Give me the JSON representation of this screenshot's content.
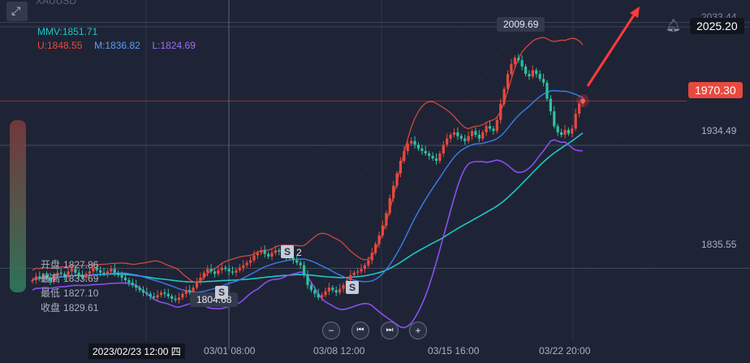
{
  "symbol": "XAUUSD",
  "indicators": {
    "mmv": "MMV:1851.71",
    "upper": "U:1848.55",
    "middle": "M:1836.82",
    "lower": "L:1824.69"
  },
  "ohlc": {
    "open_label": "开盘",
    "open_value": "1827.86",
    "high_label": "最高",
    "high_value": "1833.69",
    "low_label": "最低",
    "low_value": "1827.10",
    "close_label": "收盘",
    "close_value": "1829.61"
  },
  "price_axis": {
    "top_label": "2033.44",
    "crosshair_price": "2025.20",
    "current_price": "1970.30",
    "level_1": "1934.49",
    "level_2": "1835.55"
  },
  "annotations": {
    "high_marker": "2009.69",
    "low_marker": "1804.68",
    "s_marker": "S",
    "s_marker_count": "2"
  },
  "x_axis": {
    "crosshair_date": "2023/02/23 12:00 四",
    "ticks": [
      "03/01 08:00",
      "03/08 12:00",
      "03/15 16:00",
      "03/22 20:00"
    ]
  },
  "controls": {
    "zoom_out": "−",
    "prev": "⏮",
    "next": "⏭",
    "zoom_in": "+"
  },
  "colors": {
    "background": "#1e2435",
    "up_candle": "#e8493f",
    "down_candle": "#2fc0a0",
    "upper_band": "#d2473d",
    "middle_band": "#3a7cf0",
    "lower_band": "#8a4ff0",
    "mmv_line": "#20c6c6",
    "arrow": "#ff3b3b",
    "current_price_tag": "#e8493f"
  },
  "chart_data": {
    "type": "candlestick",
    "y_axis": {
      "ylim": [
        1790,
        2045
      ],
      "visible_labels": [
        2033.44,
        1934.49,
        1835.55
      ]
    },
    "x_axis": {
      "tick_labels": [
        "03/01 08:00",
        "03/08 12:00",
        "03/15 16:00",
        "03/22 20:00"
      ]
    },
    "close_series": [
      1826,
      1829,
      1827,
      1830,
      1828,
      1825,
      1830,
      1832,
      1831,
      1829,
      1833,
      1835,
      1832,
      1830,
      1828,
      1831,
      1833,
      1836,
      1834,
      1832,
      1831,
      1833,
      1835,
      1832,
      1830,
      1828,
      1826,
      1824,
      1822,
      1820,
      1818,
      1816,
      1815,
      1813,
      1812,
      1814,
      1816,
      1815,
      1813,
      1811,
      1810,
      1812,
      1815,
      1818,
      1816,
      1820,
      1825,
      1828,
      1832,
      1835,
      1833,
      1831,
      1834,
      1836,
      1835,
      1833,
      1832,
      1834,
      1836,
      1838,
      1840,
      1842,
      1846,
      1848,
      1850,
      1847,
      1845,
      1848,
      1850,
      1849,
      1846,
      1845,
      1844,
      1842,
      1840,
      1838,
      1830,
      1822,
      1818,
      1815,
      1812,
      1814,
      1817,
      1820,
      1818,
      1816,
      1819,
      1822,
      1826,
      1830,
      1832,
      1833,
      1835,
      1838,
      1842,
      1848,
      1855,
      1862,
      1870,
      1880,
      1892,
      1902,
      1912,
      1922,
      1930,
      1936,
      1938,
      1935,
      1932,
      1930,
      1928,
      1926,
      1924,
      1922,
      1928,
      1935,
      1940,
      1943,
      1945,
      1942,
      1940,
      1938,
      1942,
      1946,
      1943,
      1940,
      1945,
      1950,
      1948,
      1946,
      1955,
      1968,
      1980,
      1992,
      2000,
      2005,
      2003,
      1998,
      1992,
      1990,
      1995,
      1992,
      1988,
      1985,
      1972,
      1962,
      1950,
      1945,
      1943,
      1947,
      1944,
      1948,
      1960,
      1968,
      1970.3
    ],
    "bands": {
      "upper": {
        "name": "U",
        "last": 1848.55
      },
      "middle": {
        "name": "M",
        "last": 1836.82
      },
      "lower": {
        "name": "L",
        "last": 1824.69
      },
      "mmv": {
        "name": "MMV",
        "last": 1851.71
      }
    },
    "marked_high": 2009.69,
    "marked_low": 1804.68,
    "current": 1970.3,
    "crosshair_price": 2025.2
  }
}
